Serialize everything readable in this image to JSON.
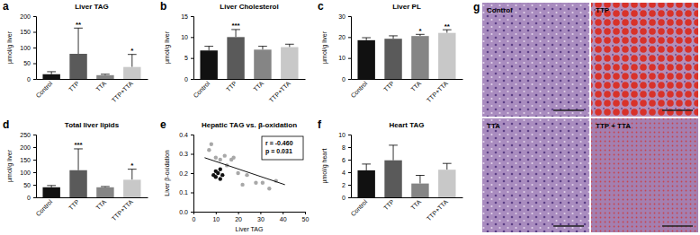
{
  "chart_data": [
    {
      "type": "bar",
      "panel_label": "a",
      "title": "Liver TAG",
      "ylabel": "µmol/g liver",
      "categories": [
        "Control",
        "TTP",
        "TTA",
        "TTP+TTA"
      ],
      "values": [
        15,
        80,
        12,
        38
      ],
      "errors": [
        8,
        82,
        3,
        40
      ],
      "colors": [
        "#111111",
        "#5a5a5a",
        "#858585",
        "#c8c8c8"
      ],
      "ylim": [
        0,
        200
      ],
      "yticks": [
        0,
        50,
        100,
        150,
        200
      ],
      "annotations": [
        {
          "text": "**",
          "category": "TTP"
        },
        {
          "text": "*",
          "category": "TTP+TTA"
        }
      ]
    },
    {
      "type": "bar",
      "panel_label": "b",
      "title": "Liver Cholesterol",
      "ylabel": "µmol/g liver",
      "categories": [
        "Control",
        "TTP",
        "TTA",
        "TTP+TTA"
      ],
      "values": [
        6.8,
        10,
        7,
        7.6
      ],
      "errors": [
        1.0,
        1.8,
        0.8,
        0.7
      ],
      "colors": [
        "#111111",
        "#5a5a5a",
        "#858585",
        "#c8c8c8"
      ],
      "ylim": [
        0,
        15
      ],
      "yticks": [
        0,
        5,
        10,
        15
      ],
      "annotations": [
        {
          "text": "***",
          "category": "TTP"
        }
      ]
    },
    {
      "type": "bar",
      "panel_label": "c",
      "title": "Liver PL",
      "ylabel": "µmol/g liver",
      "categories": [
        "Control",
        "TTP",
        "TTA",
        "TTP+TTA"
      ],
      "values": [
        18.5,
        19.2,
        20.5,
        22
      ],
      "errors": [
        1.2,
        1.4,
        0.8,
        1.5
      ],
      "colors": [
        "#111111",
        "#5a5a5a",
        "#858585",
        "#c8c8c8"
      ],
      "ylim": [
        0,
        30
      ],
      "yticks": [
        0,
        10,
        20,
        30
      ],
      "annotations": [
        {
          "text": "*",
          "category": "TTA"
        },
        {
          "text": "**",
          "category": "TTP+TTA"
        }
      ]
    },
    {
      "type": "bar",
      "panel_label": "d",
      "title": "Total liver lipids",
      "ylabel": "µmol/g liver",
      "categories": [
        "Control",
        "TTP",
        "TTA",
        "TTP+TTA"
      ],
      "values": [
        40,
        108,
        40,
        70
      ],
      "errors": [
        7,
        85,
        3,
        42
      ],
      "colors": [
        "#111111",
        "#5a5a5a",
        "#858585",
        "#c8c8c8"
      ],
      "ylim": [
        0,
        250
      ],
      "yticks": [
        0,
        50,
        100,
        150,
        200,
        250
      ],
      "annotations": [
        {
          "text": "***",
          "category": "TTP"
        },
        {
          "text": "*",
          "category": "TTP+TTA"
        }
      ]
    },
    {
      "type": "scatter",
      "panel_label": "e",
      "title": "Hepatic TAG vs. β-oxidation",
      "xlabel": "Liver TAG",
      "ylabel": "Liver β-oxidation",
      "xlim": [
        0,
        50
      ],
      "xticks": [
        0,
        10,
        20,
        30,
        40,
        50
      ],
      "ylim": [
        0,
        0.4
      ],
      "yticks": [
        {
          "value": 0,
          "label": "0.0"
        },
        {
          "value": 0.1,
          "label": "0.1"
        },
        {
          "value": 0.2,
          "label": "0.2"
        },
        {
          "value": 0.3,
          "label": "0.3"
        },
        {
          "value": 0.4,
          "label": "0.4"
        }
      ],
      "series": [
        {
          "color": "#a8a8a8",
          "marker": "circle",
          "x": [
            7,
            8,
            10,
            12,
            14,
            15,
            17,
            18,
            20,
            22,
            24,
            28,
            31,
            34,
            37
          ],
          "values": [
            0.32,
            0.35,
            0.28,
            0.27,
            0.29,
            0.24,
            0.27,
            0.28,
            0.2,
            0.14,
            0.19,
            0.15,
            0.15,
            0.12,
            0.16
          ]
        },
        {
          "color": "#111111",
          "marker": "circle",
          "x": [
            9,
            10,
            10,
            11,
            12,
            12,
            13
          ],
          "values": [
            0.19,
            0.18,
            0.21,
            0.2,
            0.17,
            0.22,
            0.19
          ]
        },
        {
          "type": "line",
          "color": "#111111",
          "line_style": "solid",
          "x": [
            5,
            41
          ],
          "values": [
            0.28,
            0.14
          ]
        }
      ],
      "annotations": [
        {
          "text": "r = -0.460"
        },
        {
          "text": "p = 0.031"
        }
      ]
    },
    {
      "type": "bar",
      "panel_label": "f",
      "title": "Heart TAG",
      "ylabel": "µmol/g heart",
      "categories": [
        "Control",
        "TTP",
        "TTA",
        "TTP+TTA"
      ],
      "values": [
        4.3,
        5.9,
        2.2,
        4.4
      ],
      "errors": [
        1.0,
        2.4,
        1.3,
        1.0
      ],
      "colors": [
        "#111111",
        "#5a5a5a",
        "#858585",
        "#c8c8c8"
      ],
      "ylim": [
        0,
        10
      ],
      "yticks": [
        0,
        2,
        4,
        6,
        8,
        10
      ],
      "annotations": []
    }
  ],
  "micrographs": {
    "panel_label": "g",
    "panels": [
      {
        "label": "Control"
      },
      {
        "label": "TTP"
      },
      {
        "label": "TTA"
      },
      {
        "label": "TTP + TTA"
      }
    ]
  }
}
